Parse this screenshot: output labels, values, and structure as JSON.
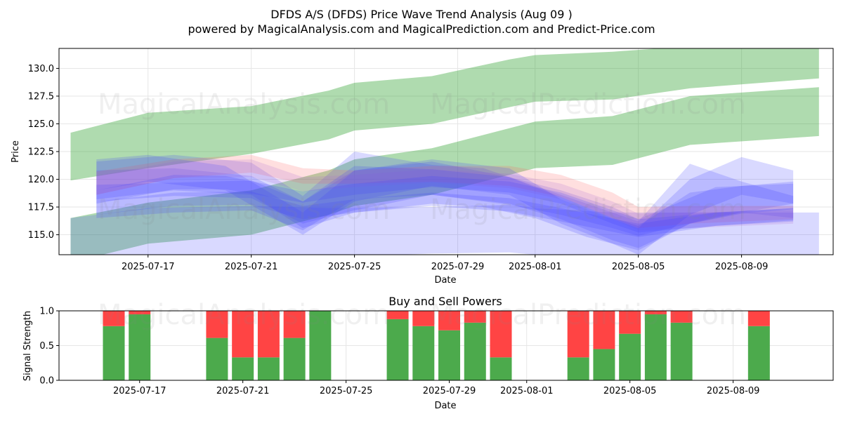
{
  "title": "DFDS A/S (DFDS) Price Wave Trend Analysis (Aug 09 )",
  "subtitle": "powered by MagicalAnalysis.com and MagicalPrediction.com and Predict-Price.com",
  "watermarks": [
    "MagicalAnalysis.com",
    "MagicalPrediction.com"
  ],
  "colors": {
    "green_band": "#2ca02c",
    "blue_band": "#4040ff",
    "red_band": "#ff6060",
    "purple_band": "#b070d0",
    "buy": "#4caa4c",
    "sell": "#ff4444"
  },
  "chart_data": [
    {
      "type": "area",
      "ylabel": "Price",
      "xlabel": "Date",
      "x_range": [
        "2025-07-14",
        "2025-08-12"
      ],
      "ylim": [
        113.2,
        131.8
      ],
      "x_ticks": [
        "2025-07-17",
        "2025-07-21",
        "2025-07-25",
        "2025-07-29",
        "2025-08-01",
        "2025-08-05",
        "2025-08-09"
      ],
      "y_ticks": [
        115.0,
        117.5,
        120.0,
        122.5,
        125.0,
        127.5,
        130.0
      ],
      "grid": true,
      "series": [
        {
          "color": "green",
          "x": [
            "2025-07-14",
            "2025-07-17",
            "2025-07-21",
            "2025-07-24",
            "2025-07-25",
            "2025-07-28",
            "2025-07-31",
            "2025-08-01",
            "2025-08-04",
            "2025-08-07",
            "2025-08-12"
          ],
          "upper": [
            124.2,
            126.0,
            126.6,
            128.0,
            128.7,
            129.3,
            130.8,
            131.2,
            131.5,
            132.0,
            132.0
          ],
          "lower": [
            119.9,
            121.0,
            122.3,
            123.6,
            124.4,
            125.0,
            126.5,
            127.0,
            127.2,
            128.2,
            129.1
          ]
        },
        {
          "color": "green",
          "x": [
            "2025-07-14",
            "2025-07-17",
            "2025-07-21",
            "2025-07-24",
            "2025-07-25",
            "2025-07-28",
            "2025-07-31",
            "2025-08-01",
            "2025-08-04",
            "2025-08-07",
            "2025-08-12"
          ],
          "upper": [
            116.5,
            117.9,
            119.0,
            120.8,
            121.8,
            122.8,
            124.6,
            125.2,
            125.7,
            127.5,
            128.3
          ],
          "lower": [
            112.5,
            114.2,
            115.0,
            116.8,
            117.6,
            118.6,
            120.4,
            121.0,
            121.3,
            123.1,
            123.9
          ]
        },
        {
          "color": "blue",
          "x": [
            "2025-07-14",
            "2025-07-17",
            "2025-07-21",
            "2025-07-24",
            "2025-07-28",
            "2025-07-31",
            "2025-08-01",
            "2025-08-04",
            "2025-08-07",
            "2025-08-12"
          ],
          "upper": [
            116.5,
            117.4,
            117.6,
            117.4,
            117.5,
            117.7,
            117.4,
            117.0,
            117.0,
            117.0
          ],
          "lower": [
            108.0,
            111.0,
            112.4,
            113.0,
            113.3,
            113.4,
            113.2,
            112.8,
            112.8,
            113.0
          ]
        },
        {
          "color": "blue",
          "x": [
            "2025-07-15",
            "2025-07-18",
            "2025-07-21",
            "2025-07-23",
            "2025-07-25",
            "2025-07-28",
            "2025-07-30",
            "2025-08-01",
            "2025-08-03",
            "2025-08-05",
            "2025-08-07",
            "2025-08-09",
            "2025-08-11"
          ],
          "upper": [
            121.6,
            122.2,
            121.5,
            118.5,
            122.5,
            121.3,
            121.0,
            119.4,
            117.8,
            116.2,
            121.4,
            119.8,
            118.5
          ],
          "lower": [
            118.2,
            119.0,
            118.6,
            115.6,
            117.0,
            117.8,
            117.5,
            116.5,
            114.8,
            113.6,
            116.0,
            117.0,
            116.5
          ]
        },
        {
          "color": "blue",
          "x": [
            "2025-07-15",
            "2025-07-18",
            "2025-07-21",
            "2025-07-23",
            "2025-07-25",
            "2025-07-28",
            "2025-07-31",
            "2025-08-02",
            "2025-08-04",
            "2025-08-05",
            "2025-08-08",
            "2025-08-11"
          ],
          "upper": [
            120.8,
            121.0,
            120.3,
            118.0,
            120.8,
            121.6,
            120.2,
            119.0,
            117.5,
            116.4,
            119.3,
            119.6
          ],
          "lower": [
            118.0,
            118.5,
            118.3,
            116.0,
            117.2,
            118.6,
            117.7,
            116.8,
            115.6,
            114.9,
            116.6,
            117.8
          ]
        },
        {
          "color": "red",
          "x": [
            "2025-07-15",
            "2025-07-18",
            "2025-07-21",
            "2025-07-23",
            "2025-07-25",
            "2025-07-28",
            "2025-07-31",
            "2025-08-02",
            "2025-08-04",
            "2025-08-05",
            "2025-08-07",
            "2025-08-11"
          ],
          "upper": [
            120.7,
            121.8,
            122.2,
            121.0,
            120.8,
            121.2,
            121.2,
            120.4,
            118.8,
            117.5,
            117.6,
            117.6
          ],
          "lower": [
            118.6,
            120.1,
            120.6,
            119.6,
            119.6,
            119.8,
            119.4,
            118.4,
            116.5,
            115.6,
            116.0,
            116.4
          ]
        },
        {
          "color": "purple",
          "x": [
            "2025-07-15",
            "2025-07-18",
            "2025-07-21",
            "2025-07-23",
            "2025-07-25",
            "2025-07-28",
            "2025-07-31",
            "2025-08-02",
            "2025-08-04",
            "2025-08-05",
            "2025-08-07",
            "2025-08-11"
          ],
          "upper": [
            120.3,
            121.6,
            121.8,
            120.2,
            120.4,
            120.9,
            120.5,
            119.6,
            118.0,
            116.9,
            117.0,
            117.2
          ],
          "lower": [
            118.6,
            120.1,
            120.2,
            118.9,
            119.3,
            119.7,
            119.2,
            118.2,
            116.4,
            115.4,
            115.6,
            116.0
          ]
        },
        {
          "color": "blue",
          "x": [
            "2025-07-15",
            "2025-07-18",
            "2025-07-20",
            "2025-07-23",
            "2025-07-25",
            "2025-07-28",
            "2025-07-31",
            "2025-08-02",
            "2025-08-04",
            "2025-08-05",
            "2025-08-08",
            "2025-08-11"
          ],
          "upper": [
            119.0,
            120.4,
            120.3,
            118.9,
            119.6,
            120.3,
            119.8,
            118.8,
            117.2,
            116.4,
            117.0,
            117.4
          ],
          "lower": [
            117.8,
            119.1,
            119.1,
            117.9,
            118.6,
            119.3,
            118.8,
            117.8,
            116.0,
            115.2,
            115.8,
            116.3
          ]
        },
        {
          "color": "blue",
          "x": [
            "2025-07-15",
            "2025-07-18",
            "2025-07-21",
            "2025-07-23",
            "2025-07-25",
            "2025-07-28",
            "2025-07-31",
            "2025-08-02",
            "2025-08-04",
            "2025-08-05",
            "2025-08-07",
            "2025-08-09",
            "2025-08-11"
          ],
          "upper": [
            119.5,
            119.7,
            119.9,
            118.0,
            121.2,
            120.9,
            120.2,
            118.4,
            116.5,
            115.8,
            118.8,
            119.4,
            119.8
          ],
          "lower": [
            116.5,
            117.0,
            117.2,
            115.4,
            118.2,
            118.6,
            117.8,
            116.4,
            114.5,
            113.8,
            116.0,
            116.9,
            117.3
          ]
        },
        {
          "color": "blue",
          "x": [
            "2025-07-15",
            "2025-07-17",
            "2025-07-20",
            "2025-07-23",
            "2025-07-25",
            "2025-07-28",
            "2025-07-31",
            "2025-08-02",
            "2025-08-04",
            "2025-08-05",
            "2025-08-07",
            "2025-08-09",
            "2025-08-11"
          ],
          "upper": [
            121.8,
            122.2,
            121.2,
            117.0,
            120.8,
            121.8,
            121.0,
            118.2,
            116.4,
            115.6,
            120.0,
            122.0,
            120.8
          ],
          "lower": [
            119.0,
            119.8,
            119.0,
            115.0,
            118.0,
            119.4,
            118.6,
            116.0,
            114.2,
            113.2,
            116.8,
            118.6,
            117.8
          ]
        },
        {
          "color": "blue",
          "x": [
            "2025-07-15",
            "2025-07-18",
            "2025-07-21",
            "2025-07-23",
            "2025-07-25",
            "2025-07-28",
            "2025-07-31",
            "2025-08-02",
            "2025-08-05",
            "2025-08-08",
            "2025-08-11"
          ],
          "upper": [
            118.0,
            118.8,
            118.9,
            117.6,
            118.2,
            118.8,
            118.3,
            117.4,
            116.0,
            117.0,
            117.4
          ],
          "lower": [
            116.8,
            117.6,
            117.7,
            116.4,
            117.0,
            117.6,
            117.1,
            116.2,
            114.8,
            115.8,
            116.2
          ]
        }
      ]
    },
    {
      "type": "bar",
      "title": "Buy and Sell Powers",
      "ylabel": "Signal Strength",
      "xlabel": "Date",
      "ylim": [
        0,
        1.0
      ],
      "y_ticks": [
        0.0,
        0.5,
        1.0
      ],
      "x_ticks": [
        "2025-07-17",
        "2025-07-21",
        "2025-07-25",
        "2025-07-29",
        "2025-08-01",
        "2025-08-05",
        "2025-08-09"
      ],
      "grid": true,
      "categories": [
        "2025-07-16",
        "2025-07-17",
        "2025-07-20",
        "2025-07-21",
        "2025-07-22",
        "2025-07-23",
        "2025-07-24",
        "2025-07-27",
        "2025-07-28",
        "2025-07-29",
        "2025-07-30",
        "2025-07-31",
        "2025-08-03",
        "2025-08-04",
        "2025-08-05",
        "2025-08-06",
        "2025-08-07",
        "2025-08-10"
      ],
      "series": [
        {
          "name": "Buy",
          "values": [
            0.78,
            0.95,
            0.61,
            0.33,
            0.33,
            0.61,
            1.0,
            0.88,
            0.78,
            0.72,
            0.83,
            0.33,
            0.33,
            0.45,
            0.67,
            0.95,
            0.83,
            0.78
          ]
        },
        {
          "name": "Sell",
          "values": [
            0.22,
            0.05,
            0.39,
            0.67,
            0.67,
            0.39,
            0.0,
            0.12,
            0.22,
            0.28,
            0.17,
            0.67,
            0.67,
            0.55,
            0.33,
            0.05,
            0.17,
            0.22
          ]
        }
      ]
    }
  ]
}
